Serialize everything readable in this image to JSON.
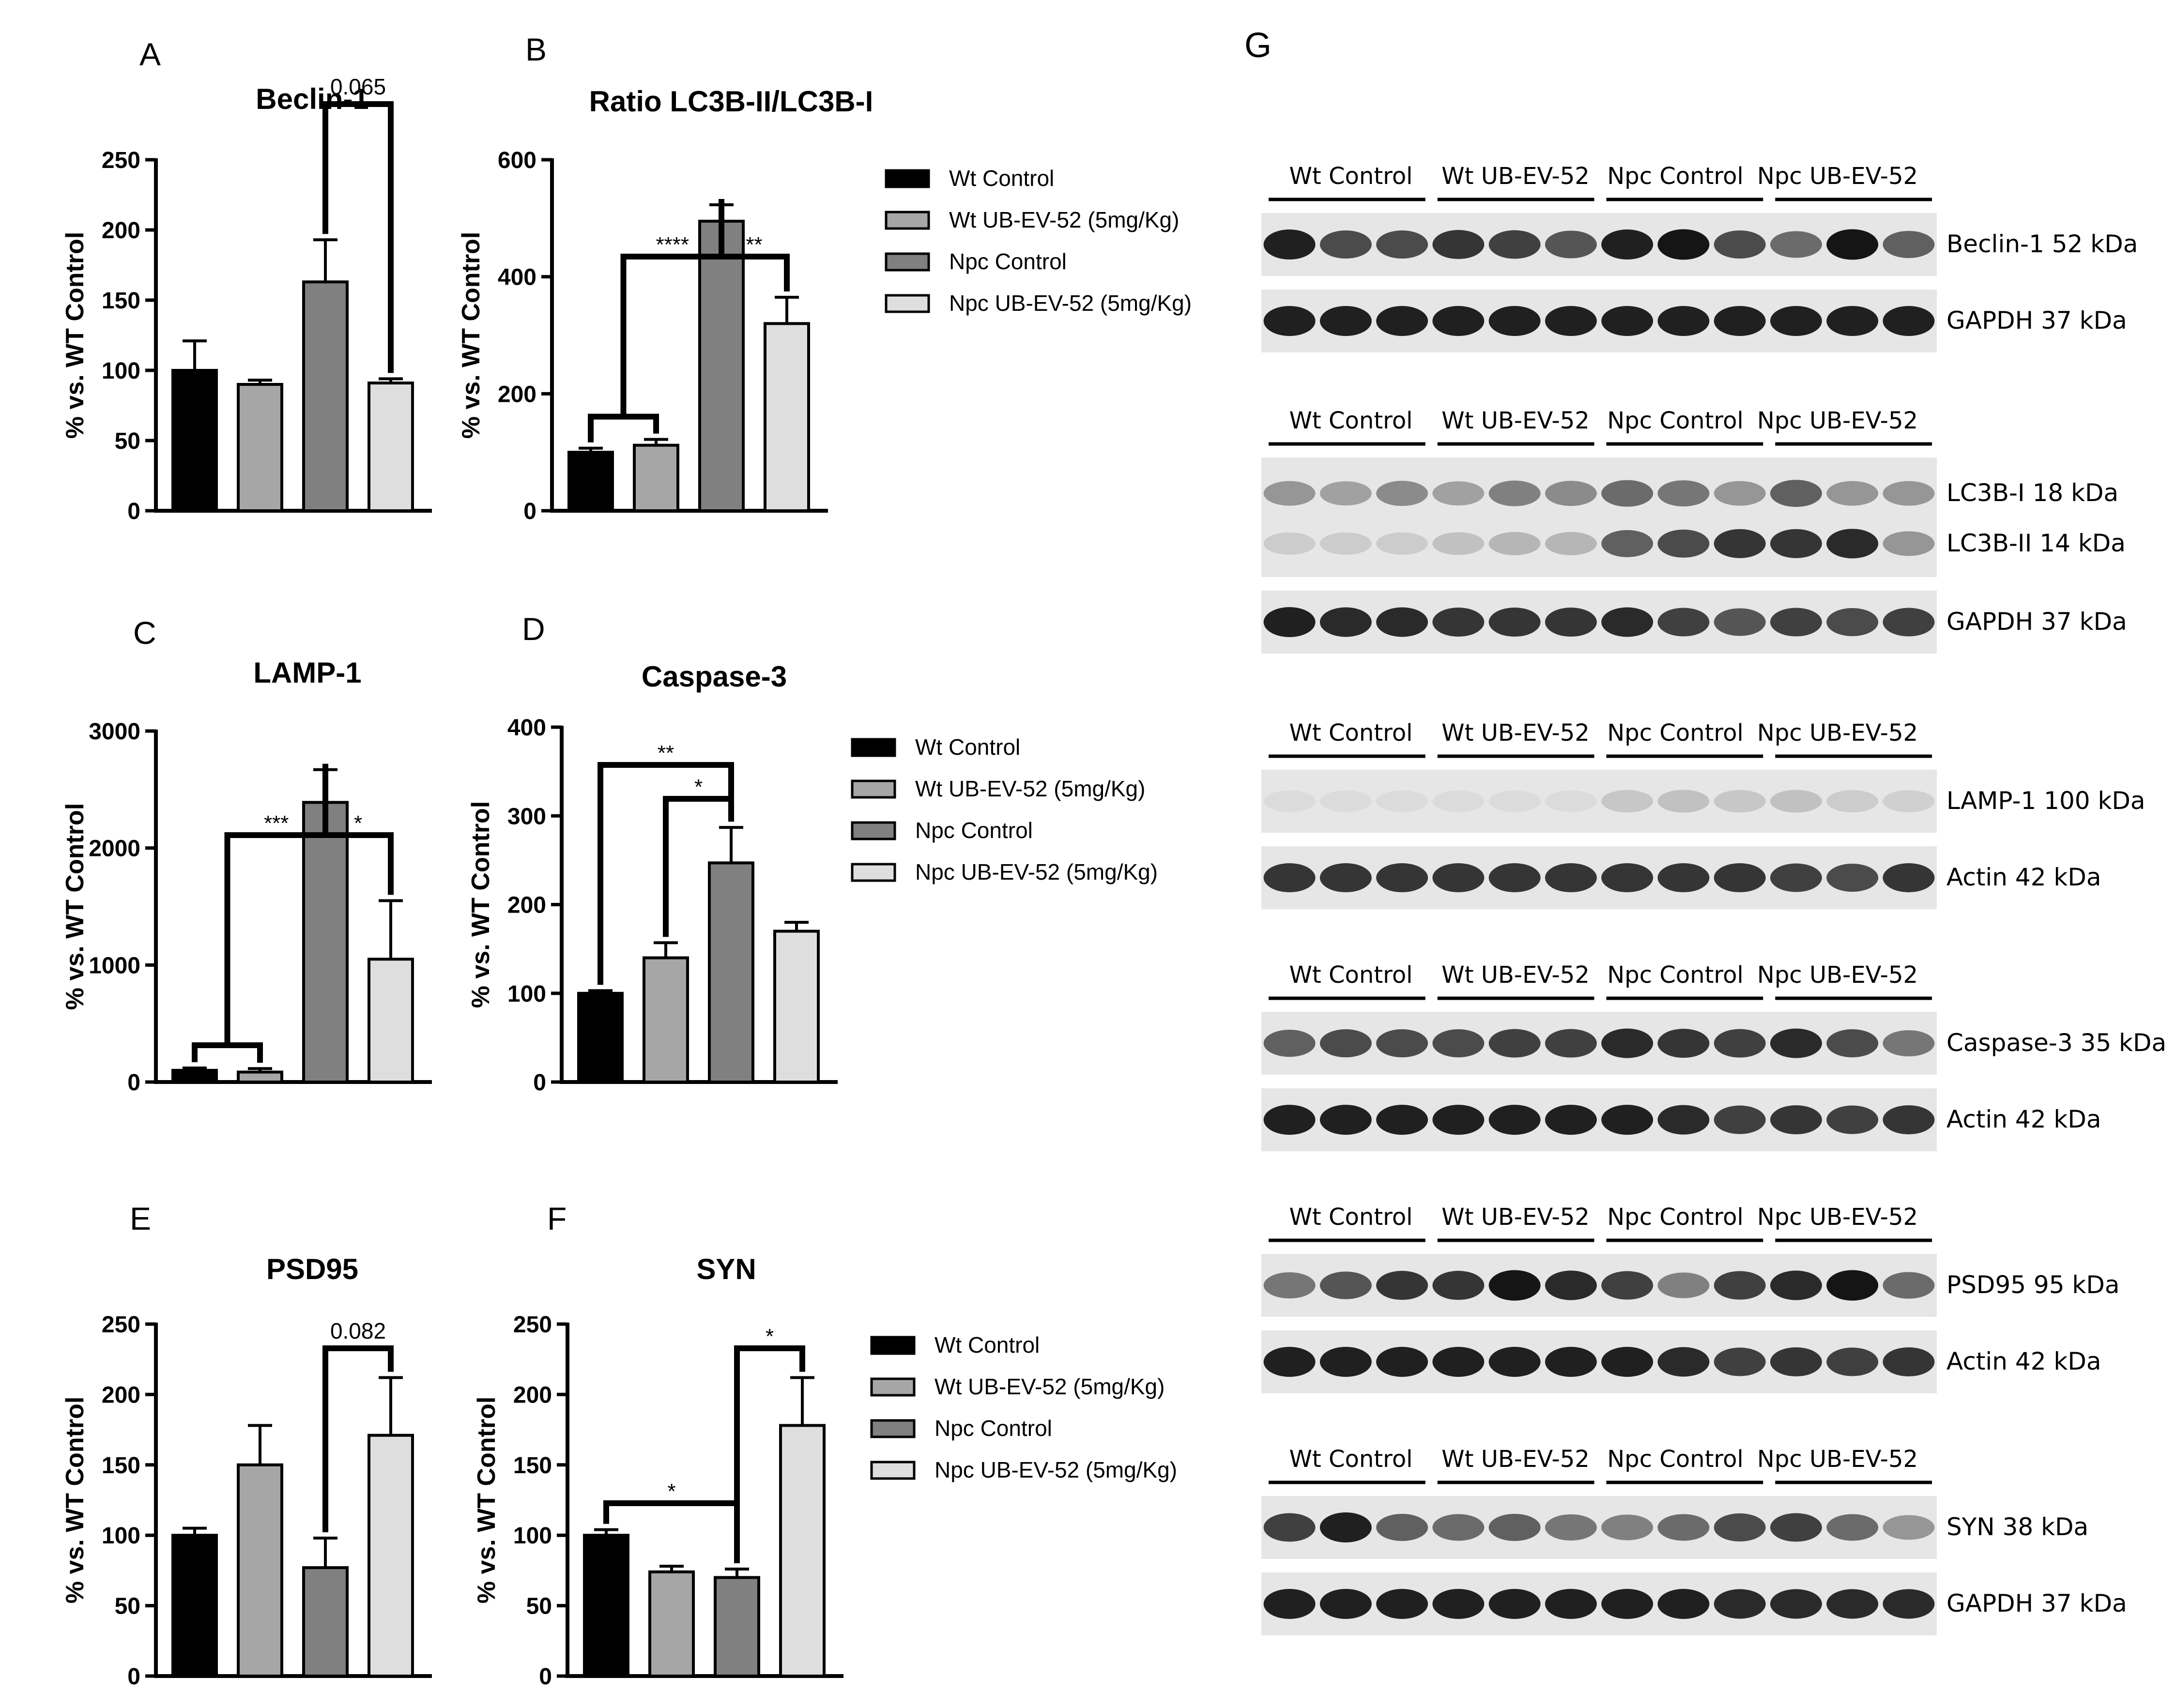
{
  "figure_letter_g": "G",
  "legend_entries": [
    "Wt Control",
    "Wt UB-EV-52 (5mg/Kg)",
    "Npc Control",
    "Npc UB-EV-52 (5mg/Kg)"
  ],
  "colors": {
    "wt_control": "#000000",
    "wt_ubev52": "#a6a6a6",
    "npc_control": "#808080",
    "npc_ubev52": "#dedede"
  },
  "chart_data": [
    {
      "panel": "A",
      "type": "bar",
      "title": "Beclin-1",
      "ylabel": "% vs. WT Control",
      "xlabel": "",
      "categories": [
        "Wt Control",
        "Wt UB-EV-52 (5mg/Kg)",
        "Npc Control",
        "Npc UB-EV-52 (5mg/Kg)"
      ],
      "values": [
        100,
        90,
        163,
        91
      ],
      "errors": [
        21,
        3,
        30,
        3
      ],
      "ylim": [
        0,
        250
      ],
      "yticks": [
        "0",
        "50",
        "100",
        "150",
        "200",
        "250"
      ],
      "annotations": [
        "0.065"
      ]
    },
    {
      "panel": "B",
      "type": "bar",
      "title": "Ratio LC3B-II/LC3B-I",
      "ylabel": "% vs. WT Control",
      "xlabel": "",
      "categories": [
        "Wt Control",
        "Wt UB-EV-52 (5mg/Kg)",
        "Npc Control",
        "Npc UB-EV-52 (5mg/Kg)"
      ],
      "values": [
        100,
        112,
        495,
        320
      ],
      "errors": [
        7,
        10,
        28,
        45
      ],
      "ylim": [
        0,
        600
      ],
      "yticks": [
        "0",
        "200",
        "400",
        "600"
      ],
      "annotations": [
        "****",
        "**"
      ]
    },
    {
      "panel": "C",
      "type": "bar",
      "title": "LAMP-1",
      "ylabel": "% vs. WT Control",
      "xlabel": "",
      "categories": [
        "Wt Control",
        "Wt UB-EV-52 (5mg/Kg)",
        "Npc Control",
        "Npc UB-EV-52 (5mg/Kg)"
      ],
      "values": [
        100,
        85,
        2390,
        1050
      ],
      "errors": [
        20,
        30,
        280,
        500
      ],
      "ylim": [
        0,
        3000
      ],
      "yticks": [
        "0",
        "1000",
        "2000",
        "3000"
      ],
      "annotations": [
        "***",
        "*"
      ]
    },
    {
      "panel": "D",
      "type": "bar",
      "title": "Caspase-3",
      "ylabel": "% vs. WT Control",
      "xlabel": "",
      "categories": [
        "Wt Control",
        "Wt UB-EV-52 (5mg/Kg)",
        "Npc Control",
        "Npc UB-EV-52 (5mg/Kg)"
      ],
      "values": [
        100,
        140,
        247,
        170
      ],
      "errors": [
        3,
        17,
        40,
        10
      ],
      "ylim": [
        0,
        400
      ],
      "yticks": [
        "0",
        "100",
        "200",
        "300",
        "400"
      ],
      "annotations": [
        "**",
        "*"
      ]
    },
    {
      "panel": "E",
      "type": "bar",
      "title": "PSD95",
      "ylabel": "% vs. WT Control",
      "xlabel": "",
      "categories": [
        "Wt Control",
        "Wt UB-EV-52 (5mg/Kg)",
        "Npc Control",
        "Npc UB-EV-52 (5mg/Kg)"
      ],
      "values": [
        100,
        150,
        77,
        171
      ],
      "errors": [
        5,
        28,
        21,
        41
      ],
      "ylim": [
        0,
        250
      ],
      "yticks": [
        "0",
        "50",
        "100",
        "150",
        "200",
        "250"
      ],
      "annotations": [
        "0.082"
      ]
    },
    {
      "panel": "F",
      "type": "bar",
      "title": "SYN",
      "ylabel": "% vs. WT Control",
      "xlabel": "",
      "categories": [
        "Wt Control",
        "Wt UB-EV-52 (5mg/Kg)",
        "Npc Control",
        "Npc UB-EV-52 (5mg/Kg)"
      ],
      "values": [
        100,
        74,
        70,
        178
      ],
      "errors": [
        4,
        4,
        6,
        34
      ],
      "ylim": [
        0,
        250
      ],
      "yticks": [
        "0",
        "50",
        "100",
        "150",
        "200",
        "250"
      ],
      "annotations": [
        "*",
        "*"
      ]
    }
  ],
  "blots": [
    {
      "groups": [
        "Wt Control",
        "Wt UB-EV-52",
        "Npc Control",
        "Npc UB-EV-52"
      ],
      "strips": [
        {
          "label": "Beclin-1 52 kDa",
          "intensity": [
            0.9,
            0.7,
            0.7,
            0.8,
            0.75,
            0.65,
            0.9,
            0.95,
            0.7,
            0.55,
            0.95,
            0.6
          ]
        },
        {
          "label": "GAPDH 37 kDa",
          "intensity": [
            0.9,
            0.9,
            0.9,
            0.9,
            0.9,
            0.9,
            0.9,
            0.9,
            0.9,
            0.9,
            0.9,
            0.9
          ]
        }
      ]
    },
    {
      "groups": [
        "Wt Control",
        "Wt UB-EV-52",
        "Npc Control",
        "Npc UB-EV-52"
      ],
      "strips": [
        {
          "label": "LC3B-I 18 kDa",
          "label2": "LC3B-II 14 kDa",
          "intensity": [
            0.35,
            0.3,
            0.4,
            0.3,
            0.45,
            0.4,
            0.55,
            0.5,
            0.35,
            0.6,
            0.35,
            0.35
          ],
          "intensity2": [
            0.1,
            0.1,
            0.1,
            0.15,
            0.2,
            0.2,
            0.6,
            0.7,
            0.8,
            0.8,
            0.85,
            0.35
          ]
        },
        {
          "label": "GAPDH 37 kDa",
          "intensity": [
            0.9,
            0.85,
            0.85,
            0.8,
            0.8,
            0.8,
            0.85,
            0.75,
            0.65,
            0.75,
            0.7,
            0.75
          ]
        }
      ]
    },
    {
      "groups": [
        "Wt Control",
        "Wt UB-EV-52",
        "Npc Control",
        "Npc UB-EV-52"
      ],
      "strips": [
        {
          "label": "LAMP-1 100 kDa",
          "intensity": [
            0.03,
            0.03,
            0.03,
            0.03,
            0.03,
            0.03,
            0.12,
            0.15,
            0.12,
            0.15,
            0.1,
            0.08
          ]
        },
        {
          "label": "Actin 42 kDa",
          "intensity": [
            0.8,
            0.8,
            0.8,
            0.8,
            0.8,
            0.8,
            0.8,
            0.8,
            0.8,
            0.75,
            0.7,
            0.8
          ]
        }
      ]
    },
    {
      "groups": [
        "Wt Control",
        "Wt UB-EV-52",
        "Npc Control",
        "Npc UB-EV-52"
      ],
      "strips": [
        {
          "label": "Caspase-3 35 kDa",
          "intensity": [
            0.6,
            0.7,
            0.7,
            0.7,
            0.75,
            0.75,
            0.85,
            0.8,
            0.75,
            0.85,
            0.7,
            0.5
          ]
        },
        {
          "label": "Actin 42 kDa",
          "intensity": [
            0.9,
            0.9,
            0.9,
            0.9,
            0.9,
            0.9,
            0.9,
            0.85,
            0.75,
            0.8,
            0.75,
            0.8
          ]
        }
      ]
    },
    {
      "groups": [
        "Wt Control",
        "Wt UB-EV-52",
        "Npc Control",
        "Npc UB-EV-52"
      ],
      "strips": [
        {
          "label": "PSD95 95 kDa",
          "intensity": [
            0.5,
            0.65,
            0.8,
            0.8,
            0.95,
            0.85,
            0.75,
            0.45,
            0.75,
            0.85,
            0.95,
            0.55
          ]
        },
        {
          "label": "Actin 42 kDa",
          "intensity": [
            0.9,
            0.9,
            0.9,
            0.9,
            0.9,
            0.9,
            0.9,
            0.85,
            0.75,
            0.8,
            0.75,
            0.8
          ]
        }
      ]
    },
    {
      "groups": [
        "Wt Control",
        "Wt UB-EV-52",
        "Npc Control",
        "Npc UB-EV-52"
      ],
      "strips": [
        {
          "label": "SYN 38 kDa",
          "intensity": [
            0.75,
            0.9,
            0.6,
            0.55,
            0.6,
            0.5,
            0.45,
            0.55,
            0.7,
            0.75,
            0.55,
            0.35
          ]
        },
        {
          "label": "GAPDH 37 kDa",
          "intensity": [
            0.9,
            0.9,
            0.9,
            0.9,
            0.9,
            0.9,
            0.9,
            0.9,
            0.85,
            0.85,
            0.85,
            0.85
          ]
        }
      ]
    }
  ]
}
